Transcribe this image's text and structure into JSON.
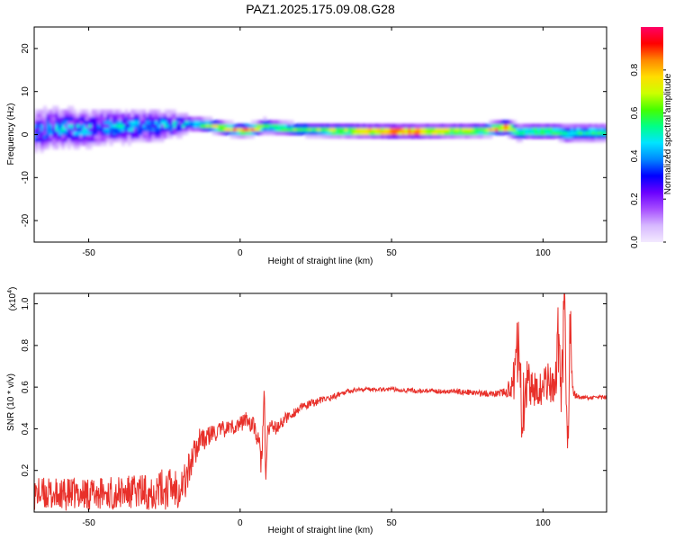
{
  "title": "PAZ1.2025.175.09.08.G28",
  "colors": {
    "snr_line": "#e8302a",
    "background": "#ffffff",
    "axes": "#000000",
    "colormap": [
      "#f3eaff",
      "#d7b8ff",
      "#a64dff",
      "#6a00ff",
      "#0000ff",
      "#0088ff",
      "#00e5ff",
      "#00ff88",
      "#44ff00",
      "#ccff00",
      "#ffdd00",
      "#ff8800",
      "#ff0000",
      "#ff0066"
    ]
  },
  "chart_data": [
    {
      "type": "heatmap",
      "name": "spectrogram",
      "xlabel": "Height of straight line (km)",
      "ylabel": "Frequency (Hz)",
      "xlim": [
        -68,
        121
      ],
      "ylim": [
        -25,
        25
      ],
      "x_ticks": [
        -50,
        0,
        50,
        100
      ],
      "x_tick_labels": [
        "-50",
        "0",
        "50",
        "100"
      ],
      "y_ticks": [
        -20,
        -10,
        0,
        10,
        20
      ],
      "y_tick_labels": [
        "-20",
        "-10",
        "0",
        "10",
        "20"
      ],
      "grid": false,
      "colorbar": {
        "label": "Normalized spectral amplitude",
        "range": [
          0,
          1
        ],
        "ticks": [
          0.0,
          0.2,
          0.4,
          0.6,
          0.8
        ],
        "tick_labels": [
          "0.0",
          "0.2",
          "0.4",
          "0.6",
          "0.8"
        ]
      },
      "band": {
        "x": [
          -68,
          -60,
          -50,
          -40,
          -30,
          -20,
          -15,
          -10,
          -5,
          0,
          5,
          8,
          10,
          20,
          30,
          40,
          50,
          60,
          70,
          80,
          88,
          92,
          95,
          100,
          105,
          108,
          110,
          115,
          121
        ],
        "center_hz": [
          1.0,
          1.5,
          1.5,
          2.0,
          2.0,
          2.5,
          2.5,
          2.2,
          1.5,
          1.0,
          1.3,
          2.0,
          1.8,
          1.2,
          1.0,
          0.9,
          0.8,
          0.8,
          0.9,
          1.0,
          1.8,
          0.5,
          0.8,
          0.8,
          0.8,
          0.2,
          0.5,
          0.5,
          0.5
        ],
        "width_hz": [
          10,
          10,
          9,
          8,
          8,
          6,
          3.5,
          3.0,
          3.0,
          3.0,
          3.0,
          3.5,
          3.2,
          3.0,
          3.0,
          3.0,
          3.0,
          3.0,
          3.0,
          3.0,
          3.5,
          4.0,
          3.5,
          3.5,
          3.5,
          4.5,
          4.0,
          4.0,
          4.0
        ],
        "peak_amplitude": [
          0.35,
          0.4,
          0.4,
          0.4,
          0.4,
          0.4,
          0.45,
          0.7,
          0.75,
          0.8,
          0.85,
          0.6,
          0.55,
          0.6,
          0.7,
          0.8,
          0.95,
          0.9,
          0.75,
          0.7,
          0.9,
          0.5,
          0.55,
          0.6,
          0.6,
          0.45,
          0.55,
          0.55,
          0.55
        ]
      }
    },
    {
      "type": "line",
      "name": "snr",
      "xlabel": "Height of straight line (km)",
      "ylabel": "SNR (10 * v/v)",
      "y_multiplier_label": "(x10",
      "y_multiplier_exponent": "4",
      "y_multiplier_close": ")",
      "xlim": [
        -68,
        121
      ],
      "ylim": [
        0,
        1.05
      ],
      "x_ticks": [
        -50,
        0,
        50,
        100
      ],
      "x_tick_labels": [
        "-50",
        "0",
        "50",
        "100"
      ],
      "y_ticks": [
        0.2,
        0.4,
        0.6,
        0.8,
        1.0
      ],
      "y_tick_labels": [
        "0.2",
        "0.4",
        "0.6",
        "0.8",
        "1.0"
      ],
      "grid": false,
      "series": [
        {
          "x": [
            -68,
            -60,
            -50,
            -40,
            -30,
            -25,
            -20,
            -18,
            -16,
            -14,
            -13,
            -12,
            -10,
            -5,
            0,
            2,
            5,
            7,
            8,
            8.5,
            9,
            10,
            12,
            15,
            20,
            25,
            30,
            35,
            40,
            50,
            60,
            70,
            80,
            85,
            88,
            90,
            91,
            92,
            93,
            95,
            98,
            100,
            102,
            104,
            105,
            106,
            107,
            108,
            109,
            110,
            111,
            112,
            115,
            121
          ],
          "values": [
            0.09,
            0.08,
            0.09,
            0.09,
            0.1,
            0.11,
            0.13,
            0.15,
            0.25,
            0.32,
            0.38,
            0.34,
            0.37,
            0.4,
            0.42,
            0.45,
            0.4,
            0.25,
            0.55,
            0.1,
            0.38,
            0.42,
            0.4,
            0.45,
            0.5,
            0.53,
            0.55,
            0.58,
            0.59,
            0.59,
            0.58,
            0.58,
            0.57,
            0.57,
            0.58,
            0.6,
            0.7,
            0.85,
            0.5,
            0.62,
            0.58,
            0.6,
            0.65,
            0.55,
            0.8,
            0.45,
            1.0,
            0.2,
            0.9,
            0.58,
            0.56,
            0.55,
            0.55,
            0.55
          ],
          "jitter": [
            0.08,
            0.08,
            0.08,
            0.08,
            0.09,
            0.1,
            0.11,
            0.1,
            0.08,
            0.06,
            0.06,
            0.05,
            0.05,
            0.04,
            0.04,
            0.04,
            0.05,
            0.08,
            0.1,
            0.06,
            0.05,
            0.04,
            0.03,
            0.03,
            0.02,
            0.02,
            0.015,
            0.012,
            0.01,
            0.01,
            0.012,
            0.012,
            0.015,
            0.015,
            0.03,
            0.08,
            0.15,
            0.18,
            0.18,
            0.12,
            0.08,
            0.08,
            0.1,
            0.12,
            0.2,
            0.2,
            0.2,
            0.2,
            0.15,
            0.04,
            0.015,
            0.01,
            0.01,
            0.01
          ]
        }
      ]
    }
  ]
}
